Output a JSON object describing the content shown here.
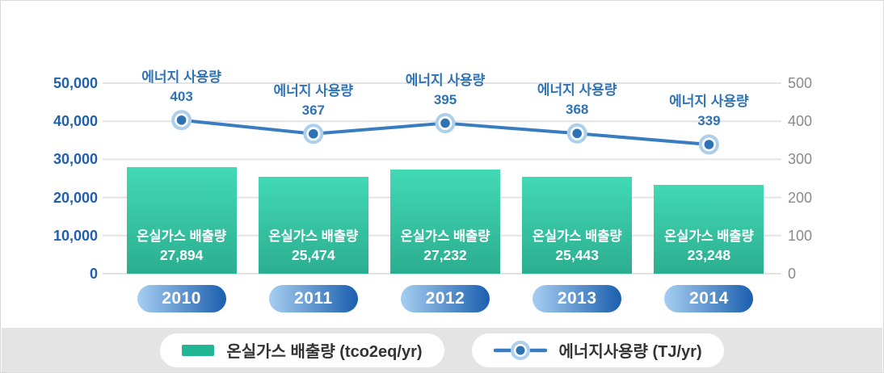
{
  "chart_data": {
    "type": "combo-bar-line",
    "title": "",
    "categories": [
      "2010",
      "2011",
      "2012",
      "2013",
      "2014"
    ],
    "series": [
      {
        "name": "온실가스 배출량",
        "type": "bar",
        "axis": "left",
        "unit": "tco2eq/yr",
        "point_label": "온실가스 배출량",
        "values": [
          27894,
          25474,
          27232,
          25443,
          23248
        ]
      },
      {
        "name": "에너지 사용량",
        "type": "line",
        "axis": "right",
        "unit": "TJ/yr",
        "point_label": "에너지 사용량",
        "values": [
          403,
          367,
          395,
          368,
          339
        ]
      }
    ],
    "left_axis": {
      "min": 0,
      "max": 50000,
      "ticks": [
        "0",
        "10,000",
        "20,000",
        "30,000",
        "40,000",
        "50,000"
      ]
    },
    "right_axis": {
      "min": 0,
      "max": 500,
      "ticks": [
        "0",
        "100",
        "200",
        "300",
        "400",
        "500"
      ]
    },
    "grid": true,
    "legend_position": "bottom"
  },
  "legend": {
    "items": [
      {
        "label": "온실가스 배출량 (tco2eq/yr)",
        "swatch": "bar"
      },
      {
        "label": "에너지사용량 (TJ/yr)",
        "swatch": "line-marker"
      }
    ]
  },
  "colors": {
    "bar_gradient_top": "#42d9b5",
    "bar_gradient_bottom": "#2bae8f",
    "legend_swatch": "#21b794",
    "line": "#3a7cc0",
    "marker_fill": "#2d72b5",
    "marker_ring": "#accfec",
    "left_axis_text": "#2060ac",
    "right_axis_text": "#8a8a8a",
    "point_label_text": "#2e73b5",
    "bar_label_text": "#ffffff",
    "year_pill_from": "#a6cef1",
    "year_pill_to": "#1b5fae",
    "grid_line": "#e3e3e3",
    "legend_band_bg": "#e4e4e4",
    "card_bg": "#ffffff"
  }
}
